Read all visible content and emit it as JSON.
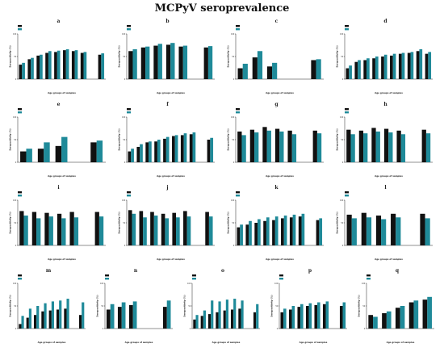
{
  "figure_title": "MCPyV seroprevalence",
  "colors": {
    "previous": "#111111",
    "this_study": "#1f8a99",
    "axis": "#222222"
  },
  "chart_data": [
    {
      "panel": "a",
      "type": "bar",
      "xlabel": "Age groups of samples",
      "ylabel": "Seropositivity (%)",
      "ylim": [
        0,
        100
      ],
      "series": [
        {
          "name": "",
          "values": [
            32,
            44,
            52,
            58,
            60,
            64,
            62,
            58,
            0,
            54
          ]
        },
        {
          "name": "",
          "values": [
            36,
            47,
            54,
            62,
            63,
            66,
            64,
            60,
            0,
            57
          ]
        }
      ]
    },
    {
      "panel": "b",
      "type": "bar",
      "xlabel": "Age groups of samples",
      "ylabel": "Seropositivity (%)",
      "ylim": [
        0,
        100
      ],
      "series": [
        {
          "name": "",
          "values": [
            62,
            70,
            74,
            76,
            72,
            0,
            70
          ]
        },
        {
          "name": "",
          "values": [
            66,
            72,
            78,
            80,
            74,
            0,
            73
          ]
        }
      ]
    },
    {
      "panel": "c",
      "type": "bar",
      "xlabel": "Age groups of samples",
      "ylabel": "Seropositivity (%)",
      "ylim": [
        0,
        100
      ],
      "series": [
        {
          "name": "",
          "values": [
            24,
            48,
            28,
            0,
            0,
            42
          ]
        },
        {
          "name": "",
          "values": [
            34,
            62,
            36,
            0,
            0,
            44
          ]
        }
      ]
    },
    {
      "panel": "d",
      "type": "bar",
      "xlabel": "Age groups of samples",
      "ylabel": "Seropositivity (%)",
      "ylim": [
        0,
        100
      ],
      "series": [
        {
          "name": "",
          "values": [
            24,
            38,
            42,
            46,
            50,
            52,
            56,
            58,
            62,
            56
          ]
        },
        {
          "name": "",
          "values": [
            30,
            42,
            46,
            50,
            54,
            56,
            58,
            60,
            66,
            60
          ]
        }
      ]
    },
    {
      "panel": "e",
      "type": "bar",
      "xlabel": "Age groups of samples",
      "ylabel": "Seropositivity (%)",
      "ylim": [
        0,
        100
      ],
      "series": [
        {
          "name": "",
          "values": [
            24,
            30,
            36,
            0,
            44
          ]
        },
        {
          "name": "",
          "values": [
            30,
            44,
            56,
            0,
            48
          ]
        }
      ]
    },
    {
      "panel": "f",
      "type": "bar",
      "xlabel": "Age groups of samples",
      "ylabel": "Seropositivity (%)",
      "ylim": [
        0,
        100
      ],
      "series": [
        {
          "name": "",
          "values": [
            24,
            34,
            44,
            46,
            52,
            58,
            60,
            62,
            0,
            50
          ]
        },
        {
          "name": "",
          "values": [
            30,
            40,
            46,
            50,
            56,
            60,
            64,
            66,
            0,
            54
          ]
        }
      ]
    },
    {
      "panel": "g",
      "type": "bar",
      "xlabel": "Age groups of samples",
      "ylabel": "Seropositivity (%)",
      "ylim": [
        0,
        100
      ],
      "series": [
        {
          "name": "",
          "values": [
            68,
            72,
            78,
            74,
            70,
            0,
            70
          ]
        },
        {
          "name": "",
          "values": [
            60,
            66,
            70,
            68,
            62,
            0,
            64
          ]
        }
      ]
    },
    {
      "panel": "h",
      "type": "bar",
      "xlabel": "Age groups of samples",
      "ylabel": "Seropositivity (%)",
      "ylim": [
        0,
        100
      ],
      "series": [
        {
          "name": "",
          "values": [
            72,
            70,
            76,
            74,
            70,
            0,
            72
          ]
        },
        {
          "name": "",
          "values": [
            62,
            64,
            68,
            66,
            62,
            0,
            64
          ]
        }
      ]
    },
    {
      "panel": "i",
      "type": "bar",
      "xlabel": "Age groups of samples",
      "ylabel": "Seropositivity (%)",
      "ylim": [
        0,
        100
      ],
      "series": [
        {
          "name": "",
          "values": [
            76,
            74,
            72,
            70,
            74,
            0,
            74
          ]
        },
        {
          "name": "",
          "values": [
            66,
            60,
            64,
            60,
            62,
            0,
            64
          ]
        }
      ]
    },
    {
      "panel": "j",
      "type": "bar",
      "xlabel": "Age groups of samples",
      "ylabel": "Seropositivity (%)",
      "ylim": [
        0,
        100
      ],
      "series": [
        {
          "name": "",
          "values": [
            78,
            76,
            74,
            70,
            72,
            76,
            0,
            74
          ]
        },
        {
          "name": "",
          "values": [
            70,
            62,
            66,
            60,
            62,
            64,
            0,
            64
          ]
        }
      ]
    },
    {
      "panel": "k",
      "type": "bar",
      "xlabel": "Age groups of samples",
      "ylabel": "Seropositivity (%)",
      "ylim": [
        0,
        100
      ],
      "series": [
        {
          "name": "",
          "values": [
            40,
            46,
            50,
            54,
            56,
            60,
            62,
            64,
            0,
            56
          ]
        },
        {
          "name": "",
          "values": [
            46,
            54,
            58,
            62,
            64,
            66,
            68,
            70,
            0,
            60
          ]
        }
      ]
    },
    {
      "panel": "l",
      "type": "bar",
      "xlabel": "Age groups of samples",
      "ylabel": "Seropositivity (%)",
      "ylim": [
        0,
        100
      ],
      "series": [
        {
          "name": "",
          "values": [
            68,
            72,
            66,
            70,
            0,
            70
          ]
        },
        {
          "name": "",
          "values": [
            60,
            62,
            58,
            62,
            0,
            60
          ]
        }
      ]
    },
    {
      "panel": "m",
      "type": "bar",
      "xlabel": "Age groups of samples",
      "ylabel": "Seropositivity (%)",
      "ylim": [
        0,
        100
      ],
      "series": [
        {
          "name": "",
          "values": [
            10,
            24,
            30,
            38,
            40,
            42,
            44,
            0,
            30
          ]
        },
        {
          "name": "",
          "values": [
            28,
            44,
            50,
            56,
            60,
            62,
            66,
            0,
            58
          ]
        }
      ]
    },
    {
      "panel": "n",
      "type": "bar",
      "xlabel": "Age groups of samples",
      "ylabel": "Seropositivity (%)",
      "ylim": [
        0,
        100
      ],
      "series": [
        {
          "name": "",
          "values": [
            42,
            48,
            52,
            0,
            0,
            48
          ]
        },
        {
          "name": "",
          "values": [
            54,
            58,
            60,
            0,
            0,
            62
          ]
        }
      ]
    },
    {
      "panel": "o",
      "type": "bar",
      "xlabel": "Age groups of samples",
      "ylabel": "Seropositivity (%)",
      "ylim": [
        0,
        100
      ],
      "series": [
        {
          "name": "",
          "values": [
            20,
            28,
            32,
            36,
            40,
            42,
            44,
            0,
            36
          ]
        },
        {
          "name": "",
          "values": [
            30,
            40,
            62,
            60,
            64,
            66,
            62,
            0,
            54
          ]
        }
      ]
    },
    {
      "panel": "p",
      "type": "bar",
      "xlabel": "Age groups of samples",
      "ylabel": "Seropositivity (%)",
      "ylim": [
        0,
        100
      ],
      "series": [
        {
          "name": "",
          "values": [
            36,
            42,
            48,
            50,
            52,
            54,
            0,
            50
          ]
        },
        {
          "name": "",
          "values": [
            44,
            50,
            54,
            56,
            58,
            60,
            0,
            58
          ]
        }
      ]
    },
    {
      "panel": "q",
      "type": "bar",
      "xlabel": "Age groups of samples",
      "ylabel": "Seropositivity (%)",
      "ylim": [
        0,
        100
      ],
      "series": [
        {
          "name": "",
          "values": [
            30,
            34,
            46,
            58,
            64
          ]
        },
        {
          "name": "",
          "values": [
            26,
            38,
            50,
            62,
            70
          ]
        }
      ]
    }
  ]
}
